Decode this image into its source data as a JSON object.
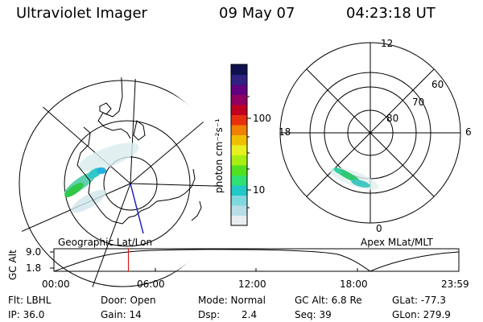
{
  "header": {
    "instrument": "Ultraviolet Imager",
    "date": "09 May 07",
    "time": "04:23:18 UT"
  },
  "left_map": {
    "caption": "Geographic Lat/Lon"
  },
  "right_map": {
    "caption": "Apex MLat/MLT",
    "mlt_labels": {
      "top": "12",
      "left": "18",
      "right": "6",
      "bottom": "0"
    },
    "mlat_labels": [
      "60",
      "70",
      "80"
    ]
  },
  "colorbar": {
    "unit": "photon cm⁻²s⁻¹",
    "ticks": [
      "100",
      "10"
    ],
    "colors": [
      "#e8eef0",
      "#b8dde6",
      "#7fd8de",
      "#20c8c8",
      "#30e070",
      "#50e020",
      "#a8ee10",
      "#e8f020",
      "#f0c000",
      "#f08000",
      "#e83010",
      "#c00020",
      "#900060",
      "#600080",
      "#302080",
      "#101050"
    ]
  },
  "altitude_plot": {
    "ylabel": "GC Alt",
    "yticks": [
      "9.0",
      "1.8"
    ],
    "xticks": [
      "00:00",
      "06:00",
      "12:00",
      "18:00",
      "23:59"
    ],
    "current_time_fraction": 0.1838
  },
  "info": {
    "filter": "Flt: LBHL",
    "door": "Door: Open",
    "mode": "Mode: Normal",
    "gc_alt": "GC Alt: 6.8 Re",
    "glat": "GLat: -77.3",
    "ip": "IP: 36.0",
    "gain": "Gain: 14",
    "dsp_label": "Dsp:",
    "dsp_value": "2.4",
    "seq": "Seq: 39",
    "glon": "GLon: 279.9"
  },
  "colors": {
    "coastline": "#000000",
    "grid": "#000000",
    "meridian_line": "#2020c0",
    "time_marker": "#e00000"
  }
}
